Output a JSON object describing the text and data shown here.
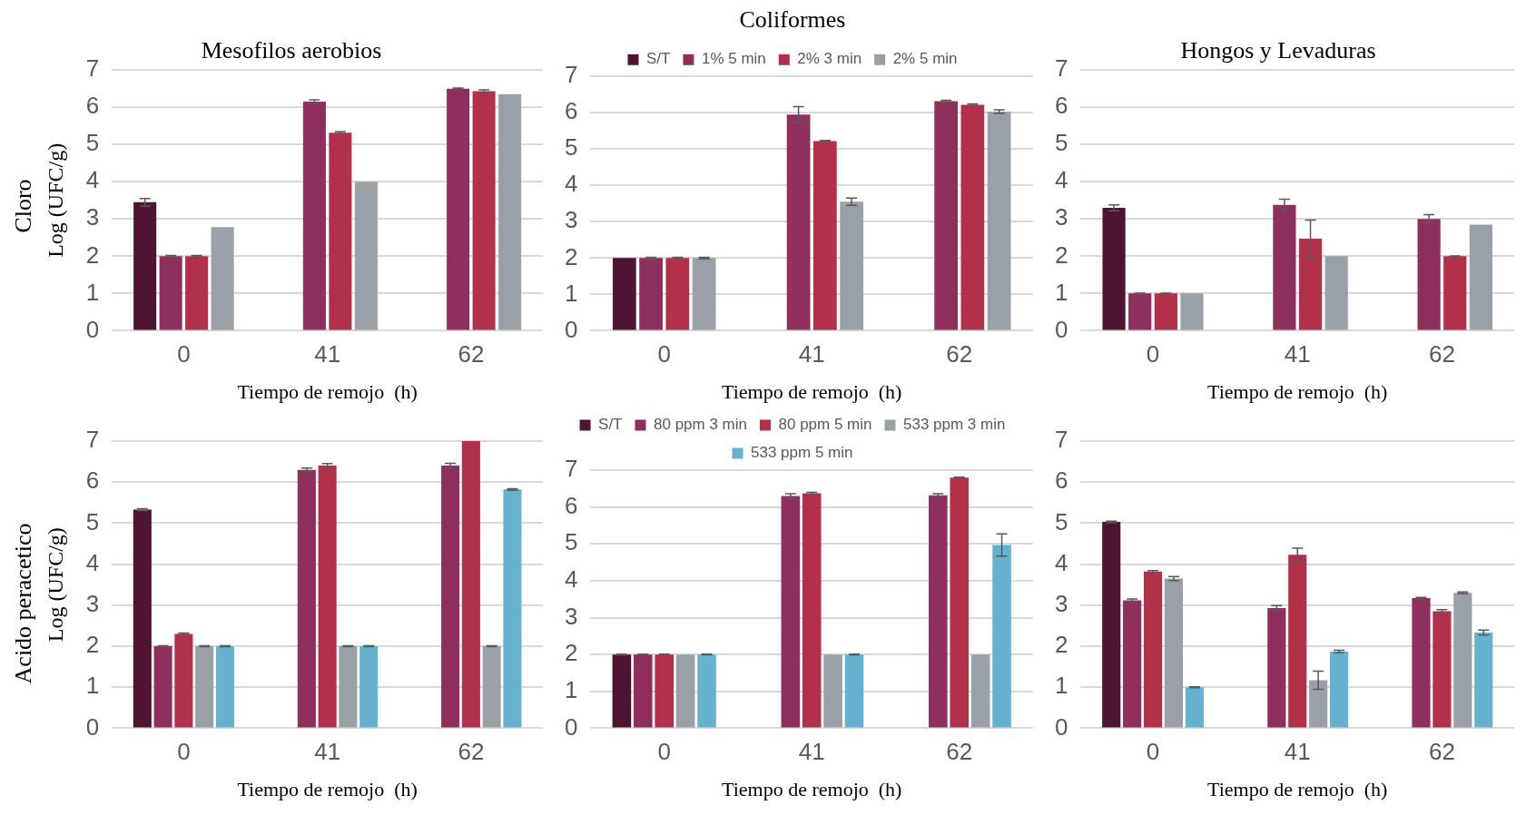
{
  "chart_data": [
    {
      "type": "bar",
      "title": "Mesofilos aerobios",
      "ylabel": "Log (UFC/g)",
      "xlabel": "Tiempo de remojo  (h)",
      "annotations": [
        "Cloro"
      ],
      "categories": [
        "0",
        "41",
        "62"
      ],
      "ylim": [
        0,
        7
      ],
      "yticks": [
        0,
        1,
        2,
        3,
        4,
        5,
        6,
        7
      ],
      "grid": "y",
      "series": [
        {
          "color": "#4e1432",
          "values": [
            3.45,
            null,
            null
          ],
          "errors": [
            0.1,
            null,
            null
          ]
        },
        {
          "color": "#8e2f5e",
          "values": [
            2.0,
            6.15,
            6.5
          ],
          "errors": [
            0.02,
            0.05,
            0.02
          ]
        },
        {
          "color": "#b2304a",
          "values": [
            2.0,
            5.32,
            6.43
          ],
          "errors": [
            0.02,
            0.03,
            0.04
          ]
        },
        {
          "color": "#99a0a8",
          "values": [
            2.78,
            4.0,
            6.35
          ]
        }
      ]
    },
    {
      "type": "bar",
      "title": "Coliformes",
      "xlabel": "Tiempo de remojo  (h)",
      "legend": "top",
      "categories": [
        "0",
        "41",
        "62"
      ],
      "ylim": [
        0,
        7
      ],
      "yticks": [
        0,
        1,
        2,
        3,
        4,
        5,
        6,
        7
      ],
      "grid": "y",
      "series": [
        {
          "name": "S/T",
          "color": "#4e1432",
          "values": [
            2.0,
            null,
            null
          ]
        },
        {
          "name": "1% 5 min",
          "color": "#8e2f5e",
          "values": [
            2.0,
            5.95,
            6.32
          ],
          "errors": [
            0.02,
            0.22,
            0.02
          ]
        },
        {
          "name": "2% 3 min",
          "color": "#b2304a",
          "values": [
            2.0,
            5.22,
            6.22
          ],
          "errors": [
            0.02,
            0.02,
            0.02
          ]
        },
        {
          "name": "2% 5 min",
          "color": "#99a0a8",
          "values": [
            2.0,
            3.55,
            6.03
          ],
          "errors": [
            0.02,
            0.1,
            0.05
          ]
        }
      ]
    },
    {
      "type": "bar",
      "title": "Hongos y Levaduras",
      "xlabel": "Tiempo de remojo  (h)",
      "categories": [
        "0",
        "41",
        "62"
      ],
      "ylim": [
        0,
        7
      ],
      "yticks": [
        0,
        1,
        2,
        3,
        4,
        5,
        6,
        7
      ],
      "grid": "y",
      "series": [
        {
          "color": "#4e1432",
          "values": [
            3.3,
            null,
            null
          ],
          "errors": [
            0.08,
            null,
            null
          ]
        },
        {
          "color": "#8e2f5e",
          "values": [
            1.0,
            3.38,
            3.0
          ],
          "errors": [
            0.01,
            0.15,
            0.12
          ]
        },
        {
          "color": "#b2304a",
          "values": [
            1.0,
            2.47,
            2.0
          ],
          "errors": [
            0.01,
            0.5,
            0.01
          ]
        },
        {
          "color": "#99a0a8",
          "values": [
            1.0,
            2.0,
            2.85
          ]
        }
      ]
    },
    {
      "type": "bar",
      "ylabel": "Log (UFC/g)",
      "xlabel": "Tiempo de remojo  (h)",
      "annotations": [
        "Acido peracetico"
      ],
      "categories": [
        "0",
        "41",
        "62"
      ],
      "ylim": [
        0,
        7
      ],
      "yticks": [
        0,
        1,
        2,
        3,
        4,
        5,
        6,
        7
      ],
      "grid": "y",
      "series": [
        {
          "color": "#4e1432",
          "values": [
            5.33,
            null,
            null
          ],
          "errors": [
            0.02,
            null,
            null
          ]
        },
        {
          "color": "#8e2f5e",
          "values": [
            2.0,
            6.3,
            6.4
          ],
          "errors": [
            0.01,
            0.04,
            0.06
          ]
        },
        {
          "color": "#b2304a",
          "values": [
            2.3,
            6.4,
            7.0
          ],
          "errors": [
            0.02,
            0.05,
            null
          ]
        },
        {
          "color": "#99a0a8",
          "values": [
            2.0,
            2.0,
            2.0
          ],
          "errors": [
            0.01,
            0.01,
            0.01
          ]
        },
        {
          "color": "#66b1cf",
          "values": [
            2.0,
            2.0,
            5.82
          ],
          "errors": [
            0.01,
            0.01,
            0.02
          ]
        }
      ]
    },
    {
      "type": "bar",
      "xlabel": "Tiempo de remojo  (h)",
      "legend": "top",
      "categories": [
        "0",
        "41",
        "62"
      ],
      "ylim": [
        0,
        7
      ],
      "yticks": [
        0,
        1,
        2,
        3,
        4,
        5,
        6,
        7
      ],
      "grid": "y",
      "series": [
        {
          "name": "S/T",
          "color": "#4e1432",
          "values": [
            2.0,
            null,
            null
          ],
          "errors": [
            0.01,
            null,
            null
          ]
        },
        {
          "name": "80 ppm 3 min",
          "color": "#8e2f5e",
          "values": [
            2.0,
            6.3,
            6.32
          ],
          "errors": [
            0.01,
            0.06,
            0.04
          ]
        },
        {
          "name": "80 ppm 5 min",
          "color": "#b2304a",
          "values": [
            2.0,
            6.37,
            6.8
          ],
          "errors": [
            0.01,
            0.03,
            0.01
          ]
        },
        {
          "name": "533 ppm 3 min",
          "color": "#99a0a8",
          "values": [
            2.0,
            2.0,
            2.0
          ]
        },
        {
          "name": "533 ppm 5 min",
          "color": "#66b1cf",
          "values": [
            2.0,
            2.0,
            4.97
          ],
          "errors": [
            0.01,
            0.01,
            0.3
          ]
        }
      ]
    },
    {
      "type": "bar",
      "xlabel": "Tiempo de remojo  (h)",
      "categories": [
        "0",
        "41",
        "62"
      ],
      "ylim": [
        0,
        7
      ],
      "yticks": [
        0,
        1,
        2,
        3,
        4,
        5,
        6,
        7
      ],
      "grid": "y",
      "series": [
        {
          "color": "#4e1432",
          "values": [
            5.03,
            null,
            null
          ],
          "errors": [
            0.02,
            null,
            null
          ]
        },
        {
          "color": "#8e2f5e",
          "values": [
            3.12,
            2.93,
            3.17
          ],
          "errors": [
            0.03,
            0.06,
            0.02
          ]
        },
        {
          "color": "#b2304a",
          "values": [
            3.82,
            4.23,
            2.85
          ],
          "errors": [
            0.02,
            0.16,
            0.04
          ]
        },
        {
          "color": "#99a0a8",
          "values": [
            3.65,
            1.17,
            3.3
          ],
          "errors": [
            0.05,
            0.22,
            0.02
          ]
        },
        {
          "color": "#66b1cf",
          "values": [
            1.0,
            1.87,
            2.33
          ],
          "errors": [
            0.01,
            0.03,
            0.06
          ]
        }
      ]
    }
  ]
}
